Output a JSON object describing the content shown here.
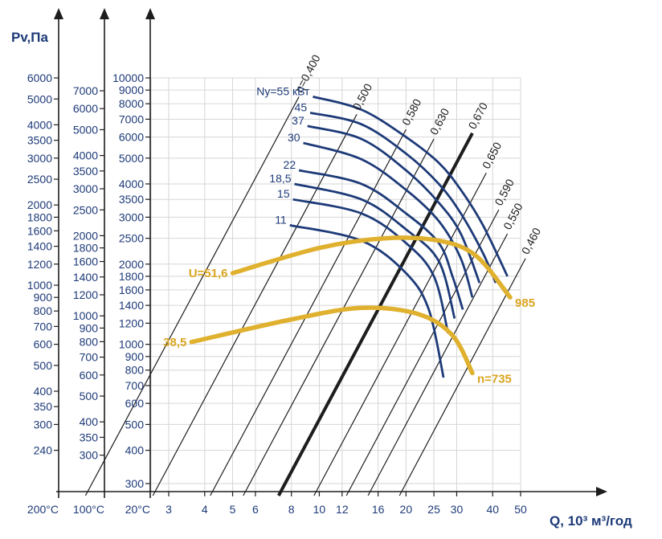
{
  "chart_data": {
    "type": "line",
    "title": "",
    "ylabel": "Pv,Па",
    "xlabel": "Q, 10³ м³/год",
    "x_scale": "log",
    "y_scale": "log",
    "xlim": [
      2.5,
      55
    ],
    "x_ticks": [
      {
        "label": "3",
        "value": 3
      },
      {
        "label": "4",
        "value": 4
      },
      {
        "label": "5",
        "value": 5
      },
      {
        "label": "6",
        "value": 6
      },
      {
        "label": "8",
        "value": 8
      },
      {
        "label": "10",
        "value": 10
      },
      {
        "label": "12",
        "value": 12
      },
      {
        "label": "16",
        "value": 16
      },
      {
        "label": "20",
        "value": 20
      },
      {
        "label": "25",
        "value": 25
      },
      {
        "label": "30",
        "value": 30
      },
      {
        "label": "40",
        "value": 40
      },
      {
        "label": "50",
        "value": 50
      }
    ],
    "temperature_axes": [
      {
        "label": "200°С",
        "ticks": [
          "6000",
          "5000",
          "4000",
          "3500",
          "3000",
          "2500",
          "2000",
          "1800",
          "1600",
          "1400",
          "1200",
          "1000",
          "900",
          "800",
          "700",
          "600",
          "500",
          "400",
          "350",
          "300",
          "240"
        ]
      },
      {
        "label": "100°С",
        "ticks": [
          "7000",
          "6000",
          "5000",
          "4000",
          "3500",
          "3000",
          "2500",
          "2000",
          "1800",
          "1600",
          "1400",
          "1200",
          "1000",
          "900",
          "800",
          "700",
          "600",
          "500",
          "400",
          "350",
          "300"
        ]
      },
      {
        "label": "20°С",
        "ticks": [
          "10000",
          "9000",
          "8000",
          "7000",
          "6000",
          "5000",
          "4000",
          "3500",
          "3000",
          "2500",
          "2000",
          "1800",
          "1600",
          "1400",
          "1200",
          "1000",
          "900",
          "800",
          "700",
          "600",
          "500",
          "400",
          "300"
        ]
      }
    ],
    "power_curves": [
      {
        "label": "Nу=55 кВт",
        "points": [
          [
            9.5,
            8500
          ],
          [
            14,
            7600
          ],
          [
            20,
            6000
          ],
          [
            26,
            4800
          ],
          [
            31,
            3800
          ],
          [
            37,
            2800
          ],
          [
            45,
            1800
          ]
        ]
      },
      {
        "label": "45",
        "points": [
          [
            9.3,
            7400
          ],
          [
            14,
            6700
          ],
          [
            20,
            5200
          ],
          [
            26,
            4000
          ],
          [
            31,
            3100
          ],
          [
            37,
            2200
          ],
          [
            41,
            1700
          ]
        ]
      },
      {
        "label": "37",
        "points": [
          [
            9.1,
            6600
          ],
          [
            14,
            5900
          ],
          [
            20,
            4500
          ],
          [
            26,
            3400
          ],
          [
            31,
            2600
          ],
          [
            36,
            1700
          ]
        ]
      },
      {
        "label": "30",
        "points": [
          [
            8.8,
            5700
          ],
          [
            14,
            4950
          ],
          [
            20,
            3800
          ],
          [
            26,
            2900
          ],
          [
            31,
            2100
          ],
          [
            34,
            1500
          ]
        ]
      },
      {
        "label": "22",
        "points": [
          [
            8.5,
            4500
          ],
          [
            14,
            4000
          ],
          [
            20,
            3100
          ],
          [
            26,
            2400
          ],
          [
            29,
            1800
          ],
          [
            31.5,
            1350
          ]
        ]
      },
      {
        "label": "18,5",
        "points": [
          [
            8.2,
            4000
          ],
          [
            14,
            3500
          ],
          [
            20,
            2700
          ],
          [
            26,
            2050
          ],
          [
            29.5,
            1250
          ]
        ]
      },
      {
        "label": "15",
        "points": [
          [
            8.1,
            3500
          ],
          [
            14,
            3100
          ],
          [
            20,
            2400
          ],
          [
            25,
            1800
          ],
          [
            28,
            1100
          ]
        ]
      },
      {
        "label": "11",
        "points": [
          [
            7.9,
            2800
          ],
          [
            14,
            2450
          ],
          [
            20,
            1850
          ],
          [
            24,
            1350
          ],
          [
            27,
            750
          ]
        ]
      }
    ],
    "speed_curves": [
      {
        "start_label": "U=51,6",
        "end_label": "985",
        "points": [
          [
            5,
            1850
          ],
          [
            10,
            2300
          ],
          [
            17,
            2500
          ],
          [
            26,
            2450
          ],
          [
            35,
            2150
          ],
          [
            46,
            1500
          ]
        ]
      },
      {
        "start_label": "38,5",
        "end_label": "n=735",
        "points": [
          [
            3.6,
            1020
          ],
          [
            8,
            1240
          ],
          [
            14,
            1370
          ],
          [
            22,
            1300
          ],
          [
            29,
            1080
          ],
          [
            34,
            780
          ]
        ]
      }
    ],
    "efficiency_lines": [
      {
        "label": "η=0,400",
        "slope": 2,
        "intercept_ref": [
          8.5,
          8500
        ]
      },
      {
        "label": "0,500",
        "slope": 2,
        "intercept_ref": [
          13.5,
          7300
        ]
      },
      {
        "label": "0,580",
        "slope": 2,
        "intercept_ref": [
          20,
          6400
        ]
      },
      {
        "label": "0,630",
        "slope": 2,
        "intercept_ref": [
          25,
          5900
        ]
      },
      {
        "label": "0,670",
        "slope": 2,
        "intercept_ref": [
          34,
          6200
        ],
        "bold": true
      },
      {
        "label": "0,650",
        "slope": 2,
        "intercept_ref": [
          38,
          4400
        ]
      },
      {
        "label": "0,590",
        "slope": 2,
        "intercept_ref": [
          42,
          3200
        ]
      },
      {
        "label": "0,550",
        "slope": 2,
        "intercept_ref": [
          45,
          2600
        ]
      },
      {
        "label": "0,460",
        "slope": 2,
        "intercept_ref": [
          52,
          2100
        ]
      }
    ]
  }
}
